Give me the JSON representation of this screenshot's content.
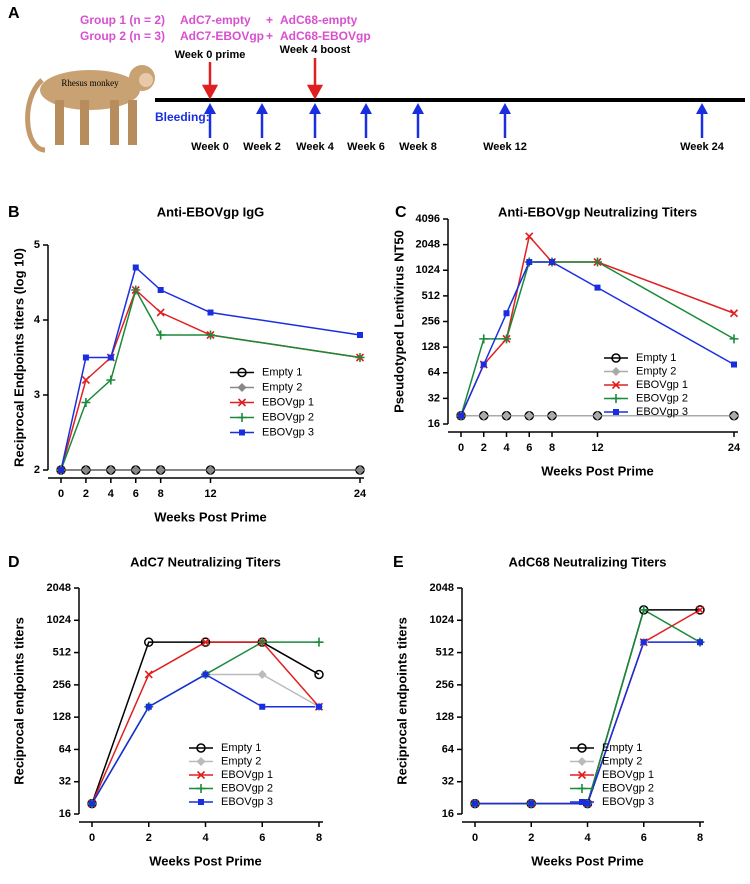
{
  "diagram": {
    "panel_label": "A",
    "groups": [
      [
        "Group 1 (n = 2)",
        "AdC7-empty",
        "+",
        "AdC68-empty"
      ],
      [
        "Group 2 (n = 3)",
        "AdC7-EBOVgp",
        "+",
        "AdC68-EBOVgp"
      ]
    ],
    "animal": "Rhesus monkey",
    "prime": "Week 0 prime",
    "boost": "Week 4 boost",
    "bleeding": "Bleeding:",
    "bleed_weeks": [
      "Week 0",
      "Week 2",
      "Week 4",
      "Week 6",
      "Week 8",
      "Week 12",
      "Week 24"
    ]
  },
  "chart_data": [
    {
      "type": "line",
      "panel_label": "B",
      "title": "Anti-EBOVgp IgG",
      "x_label": "Weeks Post Prime",
      "y_label": "Reciprocal Endpoints titers (log 10)",
      "x": [
        0,
        2,
        4,
        6,
        8,
        12,
        24
      ],
      "xlim": [
        0,
        24
      ],
      "xticks": [
        0,
        2,
        4,
        6,
        8,
        12,
        24
      ],
      "ylim": [
        2,
        5
      ],
      "yticks": [
        2,
        3,
        4,
        5
      ],
      "yscale": "linear",
      "legend": "center right",
      "series": [
        {
          "name": "Empty 1",
          "color": "#000000",
          "marker": "circle-open",
          "values": [
            2,
            2,
            2,
            2,
            2,
            2,
            2
          ]
        },
        {
          "name": "Empty 2",
          "color": "#888888",
          "marker": "diamond",
          "values": [
            2,
            2,
            2,
            2,
            2,
            2,
            2
          ]
        },
        {
          "name": "EBOVgp 1",
          "color": "#e02020",
          "marker": "x",
          "values": [
            2,
            3.2,
            3.5,
            4.4,
            4.1,
            3.8,
            3.5
          ]
        },
        {
          "name": "EBOVgp 2",
          "color": "#1a8a3a",
          "marker": "plus",
          "values": [
            2,
            2.9,
            3.2,
            4.4,
            3.8,
            3.8,
            3.5
          ]
        },
        {
          "name": "EBOVgp 3",
          "color": "#1a2ee0",
          "marker": "square",
          "values": [
            2,
            3.5,
            3.5,
            4.7,
            4.4,
            4.1,
            3.8
          ]
        }
      ]
    },
    {
      "type": "line",
      "panel_label": "C",
      "title": "Anti-EBOVgp Neutralizing Titers",
      "x_label": "Weeks Post Prime",
      "y_label": "Pseudotyped Lentivirus NT50",
      "x": [
        0,
        2,
        4,
        6,
        8,
        12,
        24
      ],
      "xlim": [
        0,
        24
      ],
      "xticks": [
        0,
        2,
        4,
        6,
        8,
        12,
        24
      ],
      "ylim": [
        16,
        4096
      ],
      "yticks": [
        16,
        32,
        64,
        128,
        256,
        512,
        1024,
        2048,
        4096
      ],
      "yscale": "log",
      "legend": "lower right",
      "series": [
        {
          "name": "Empty 1",
          "color": "#000000",
          "marker": "circle-open",
          "values": [
            20,
            20,
            20,
            20,
            20,
            20,
            20
          ]
        },
        {
          "name": "Empty 2",
          "color": "#aaaaaa",
          "marker": "diamond",
          "values": [
            20,
            20,
            20,
            20,
            20,
            20,
            20
          ]
        },
        {
          "name": "EBOVgp 1",
          "color": "#e02020",
          "marker": "x",
          "values": [
            20,
            80,
            160,
            2560,
            1280,
            1280,
            320
          ]
        },
        {
          "name": "EBOVgp 2",
          "color": "#1a8a3a",
          "marker": "plus",
          "values": [
            20,
            160,
            160,
            1280,
            1280,
            1280,
            160
          ]
        },
        {
          "name": "EBOVgp 3",
          "color": "#1a2ee0",
          "marker": "square",
          "values": [
            20,
            80,
            320,
            1280,
            1280,
            640,
            80
          ]
        }
      ]
    },
    {
      "type": "line",
      "panel_label": "D",
      "title": "AdC7 Neutralizing Titers",
      "x_label": "Weeks Post Prime",
      "y_label": "Reciprocal endpoints titers",
      "x": [
        0,
        2,
        4,
        6,
        8
      ],
      "xlim": [
        0,
        8
      ],
      "xticks": [
        0,
        2,
        4,
        6,
        8
      ],
      "ylim": [
        16,
        2048
      ],
      "yticks": [
        16,
        32,
        64,
        128,
        256,
        512,
        1024,
        2048
      ],
      "yscale": "log",
      "legend": "lower right",
      "series": [
        {
          "name": "Empty 1",
          "color": "#000000",
          "marker": "circle-open",
          "values": [
            20,
            640,
            640,
            640,
            320
          ]
        },
        {
          "name": "Empty 2",
          "color": "#bbbbbb",
          "marker": "diamond",
          "values": [
            20,
            160,
            320,
            320,
            160
          ]
        },
        {
          "name": "EBOVgp 1",
          "color": "#e02020",
          "marker": "x",
          "values": [
            20,
            320,
            640,
            640,
            160
          ]
        },
        {
          "name": "EBOVgp 2",
          "color": "#1a8a3a",
          "marker": "plus",
          "values": [
            20,
            160,
            320,
            640,
            640
          ]
        },
        {
          "name": "EBOVgp 3",
          "color": "#1a2ee0",
          "marker": "square",
          "values": [
            20,
            160,
            320,
            160,
            160
          ]
        }
      ]
    },
    {
      "type": "line",
      "panel_label": "E",
      "title": "AdC68 Neutralizing Titers",
      "x_label": "Weeks Post Prime",
      "y_label": "Reciprocal endpoints titers",
      "x": [
        0,
        2,
        4,
        6,
        8
      ],
      "xlim": [
        0,
        8
      ],
      "xticks": [
        0,
        2,
        4,
        6,
        8
      ],
      "ylim": [
        16,
        2048
      ],
      "yticks": [
        16,
        32,
        64,
        128,
        256,
        512,
        1024,
        2048
      ],
      "yscale": "log",
      "legend": "lower right",
      "series": [
        {
          "name": "Empty 1",
          "color": "#000000",
          "marker": "circle-open",
          "values": [
            20,
            20,
            20,
            1280,
            1280
          ]
        },
        {
          "name": "Empty 2",
          "color": "#bbbbbb",
          "marker": "diamond",
          "values": [
            20,
            20,
            20,
            640,
            640
          ]
        },
        {
          "name": "EBOVgp 1",
          "color": "#e02020",
          "marker": "x",
          "values": [
            20,
            20,
            20,
            640,
            1280
          ]
        },
        {
          "name": "EBOVgp 2",
          "color": "#1a8a3a",
          "marker": "plus",
          "values": [
            20,
            20,
            20,
            1280,
            640
          ]
        },
        {
          "name": "EBOVgp 3",
          "color": "#1a2ee0",
          "marker": "square",
          "values": [
            20,
            20,
            20,
            640,
            640
          ]
        }
      ]
    }
  ]
}
